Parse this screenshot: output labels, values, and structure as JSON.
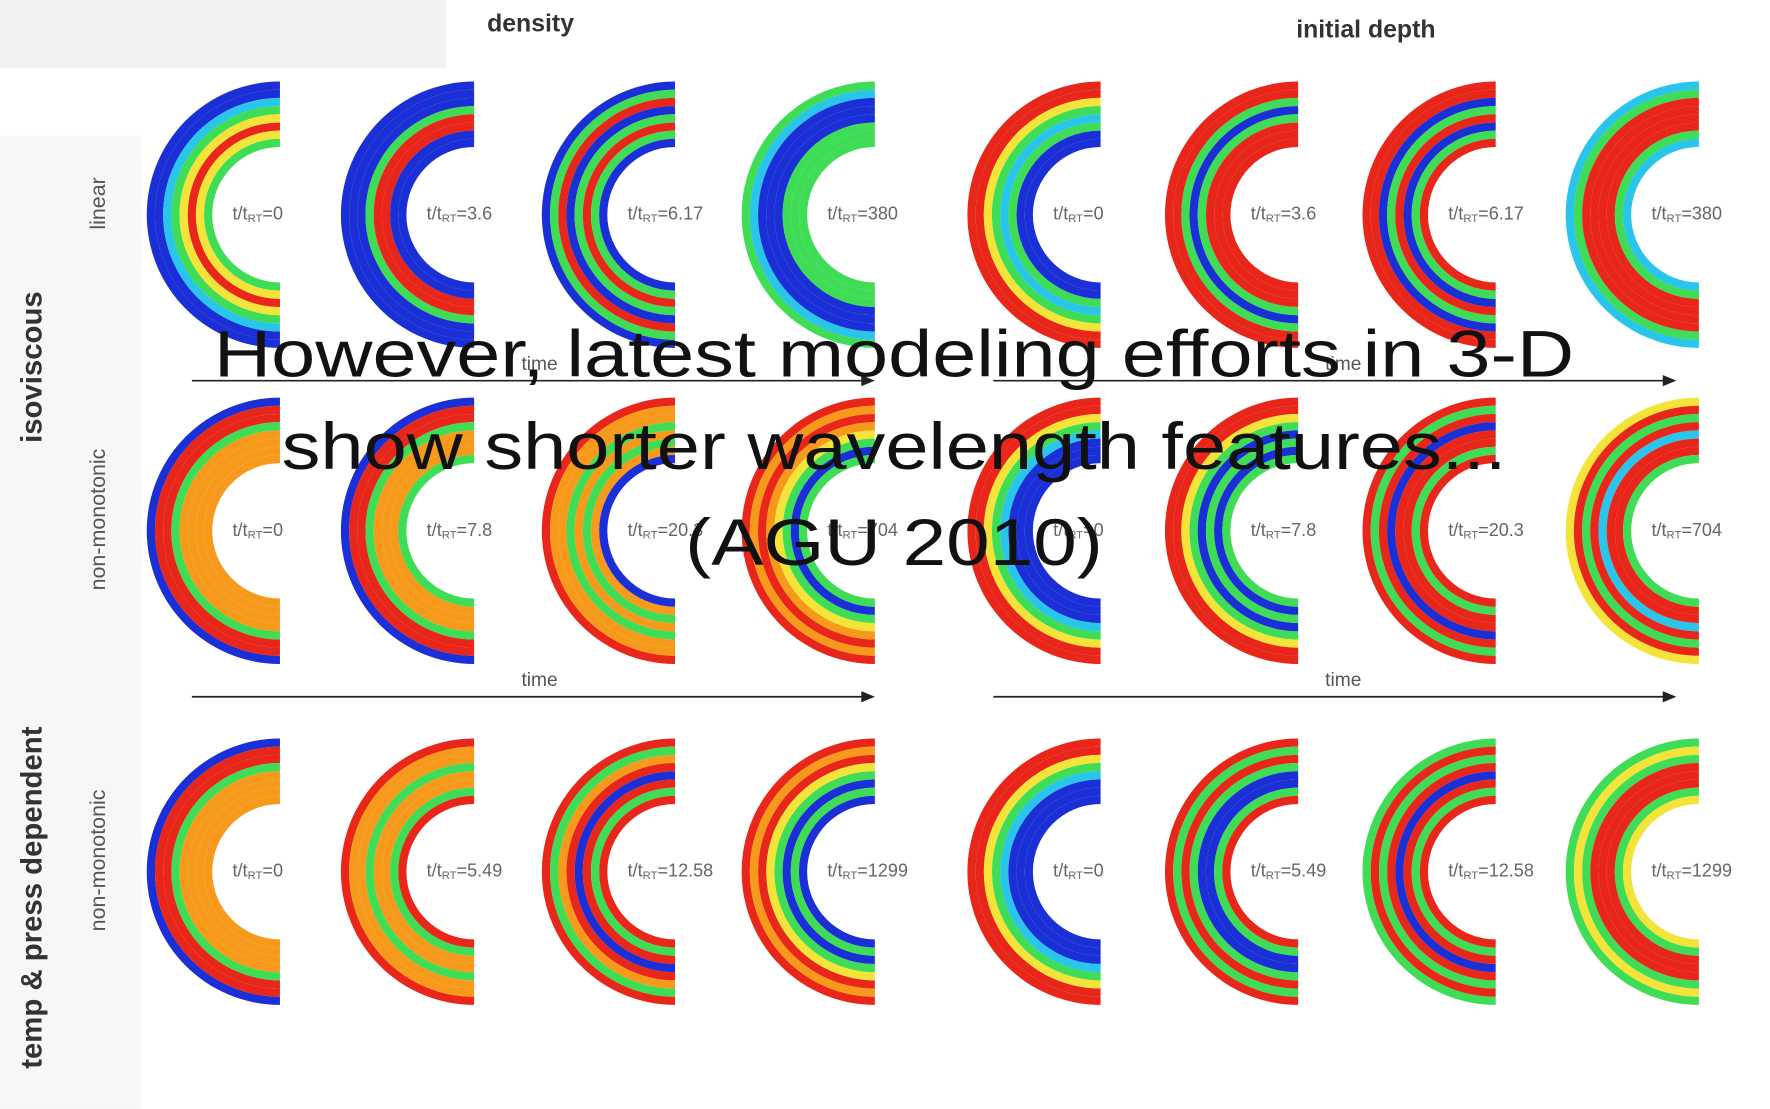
{
  "column_groups": [
    "density",
    "initial depth"
  ],
  "row_groups": [
    "isoviscous",
    "temp & press dependent"
  ],
  "ratio": {
    "base": "t/t",
    "sub": "RT"
  },
  "rows": [
    {
      "label": "linear",
      "time": [
        "time",
        "time"
      ],
      "panels": [
        [
          "=0",
          "=3.6",
          "=6.17",
          "=380"
        ],
        [
          "=0",
          "=3.6",
          "=6.17",
          "=380"
        ]
      ]
    },
    {
      "label": "non-monotonic",
      "time": [
        "time",
        "time"
      ],
      "panels": [
        [
          "=0",
          "=7.8",
          "=20.3",
          "=704"
        ],
        [
          "=0",
          "=7.8",
          "=20.3",
          "=704"
        ]
      ]
    },
    {
      "label": "non-monotonic",
      "panels": [
        [
          "=0",
          "=5.49",
          "=12.58",
          "=1299"
        ],
        [
          "=0",
          "=5.49",
          "=12.58",
          "=1299"
        ]
      ]
    }
  ],
  "overlay": [
    "However, latest modeling efforts in 3-D",
    "show shorter wavelength features...",
    "(AGU 2010)"
  ]
}
